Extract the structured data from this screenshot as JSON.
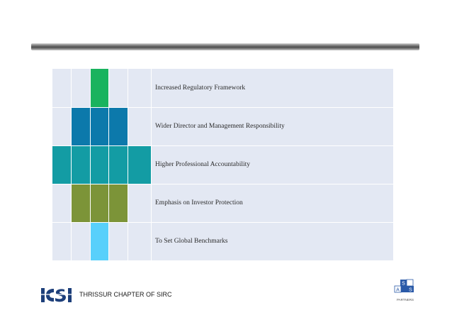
{
  "rows": [
    {
      "label": "Increased Regulatory Framework"
    },
    {
      "label": "Wider Director and Management Responsibility"
    },
    {
      "label": "Higher Professional Accountability"
    },
    {
      "label": "Emphasis on Investor Protection"
    },
    {
      "label": "To Set Global Benchmarks"
    }
  ],
  "colors": {
    "grid_bg": "#e3e8f3",
    "green": "#19b35e",
    "blue": "#0c79ab",
    "teal": "#139ca4",
    "olive": "#7c9438",
    "light_blue": "#58d0fb"
  },
  "footer": {
    "chapter": "THRISSUR CHAPTER OF SIRC",
    "logo_icon": "icsi-logo-icon",
    "partner_icon": "sas-partners-logo-icon",
    "partner_letters": [
      "S",
      "A",
      "S"
    ],
    "partner_caption": "PARTNERS"
  }
}
